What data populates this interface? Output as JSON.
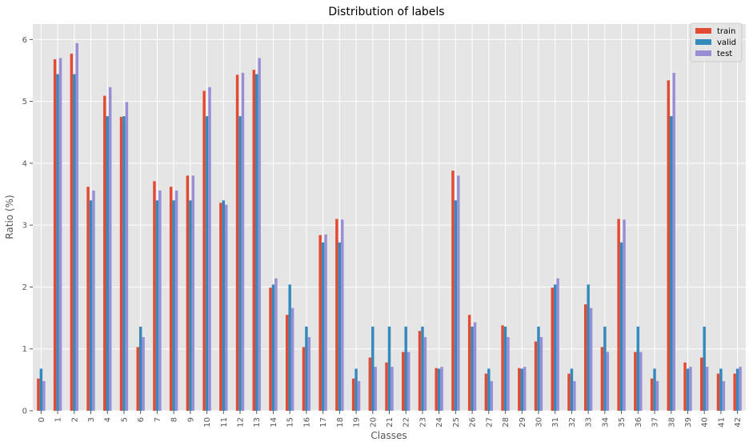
{
  "chart_data": {
    "type": "bar",
    "title": "Distribution of labels",
    "xlabel": "Classes",
    "ylabel": "Ratio (%)",
    "ylim": [
      0,
      6.25
    ],
    "yticks": [
      0,
      1,
      2,
      3,
      4,
      5,
      6
    ],
    "grid": true,
    "legend": "top-right",
    "categories": [
      "0",
      "1",
      "2",
      "3",
      "4",
      "5",
      "6",
      "7",
      "8",
      "9",
      "10",
      "11",
      "12",
      "13",
      "14",
      "15",
      "16",
      "17",
      "18",
      "19",
      "20",
      "21",
      "22",
      "23",
      "24",
      "25",
      "26",
      "27",
      "28",
      "29",
      "30",
      "31",
      "32",
      "33",
      "34",
      "35",
      "36",
      "37",
      "38",
      "39",
      "40",
      "41",
      "42"
    ],
    "series": [
      {
        "name": "train",
        "color": "#e24a33",
        "values": [
          0.52,
          5.68,
          5.77,
          3.62,
          5.09,
          4.75,
          1.03,
          3.71,
          3.62,
          3.8,
          5.17,
          3.36,
          5.43,
          5.51,
          1.99,
          1.55,
          1.03,
          2.84,
          3.1,
          0.52,
          0.86,
          0.78,
          0.95,
          1.29,
          0.69,
          3.88,
          1.55,
          0.6,
          1.38,
          0.69,
          1.12,
          1.99,
          0.6,
          1.72,
          1.03,
          3.1,
          0.95,
          0.52,
          5.34,
          0.78,
          0.86,
          0.6,
          0.6
        ]
      },
      {
        "name": "valid",
        "color": "#348abd",
        "values": [
          0.68,
          5.44,
          5.44,
          3.4,
          4.76,
          4.76,
          1.36,
          3.4,
          3.4,
          3.4,
          4.76,
          3.4,
          4.76,
          5.44,
          2.04,
          2.04,
          1.36,
          2.72,
          2.72,
          0.68,
          1.36,
          1.36,
          1.36,
          1.36,
          0.68,
          3.4,
          1.36,
          0.68,
          1.36,
          0.68,
          1.36,
          2.04,
          0.68,
          2.04,
          1.36,
          2.72,
          1.36,
          0.68,
          4.76,
          0.68,
          1.36,
          0.68,
          0.68
        ]
      },
      {
        "name": "test",
        "color": "#988ed5",
        "values": [
          0.48,
          5.7,
          5.94,
          3.56,
          5.23,
          4.99,
          1.19,
          3.56,
          3.56,
          3.8,
          5.23,
          3.33,
          5.46,
          5.7,
          2.14,
          1.66,
          1.19,
          2.85,
          3.09,
          0.48,
          0.71,
          0.71,
          0.95,
          1.19,
          0.71,
          3.8,
          1.43,
          0.48,
          1.19,
          0.71,
          1.19,
          2.14,
          0.48,
          1.66,
          0.95,
          3.09,
          0.95,
          0.48,
          5.46,
          0.71,
          0.71,
          0.48,
          0.71
        ]
      }
    ]
  }
}
